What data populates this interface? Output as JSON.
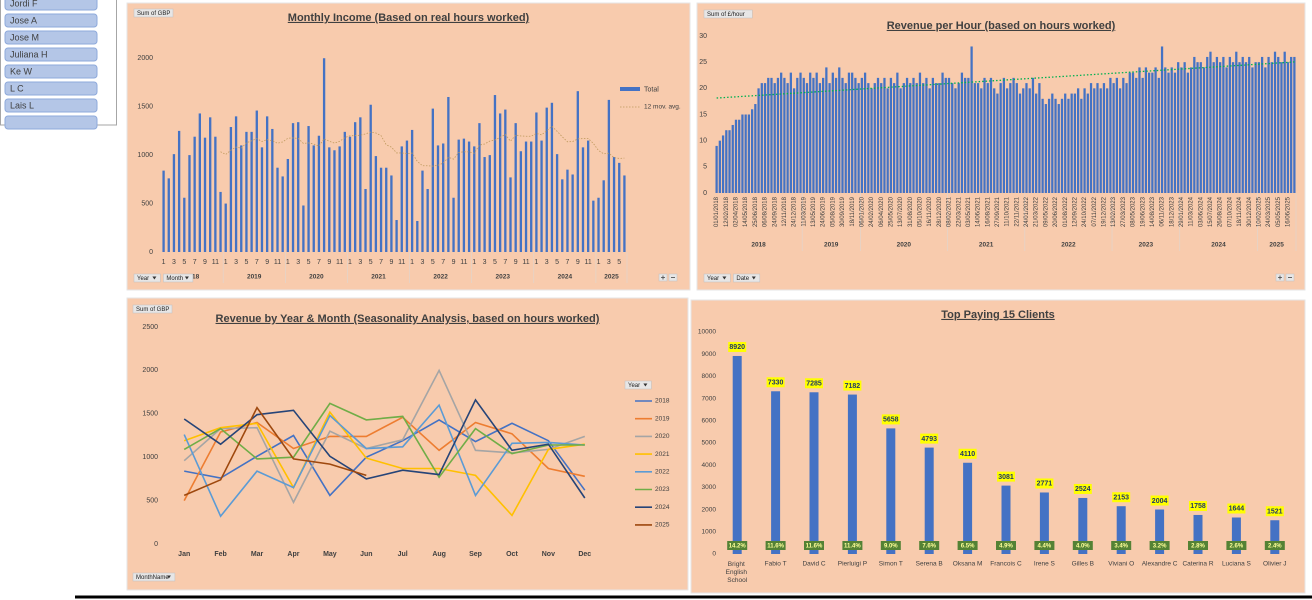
{
  "slicer": {
    "items": [
      "Jordi F",
      "Jose A",
      "Jose M",
      "Juliana H",
      "Ke W",
      "L C",
      "Lais L"
    ]
  },
  "chart_data": [
    {
      "type": "grouped_bar",
      "title": "Monthly Income (Based on real hours worked)",
      "field_button": "Sum of GBP",
      "axis_buttons": [
        "Year",
        "Month"
      ],
      "series_name": "Total",
      "color": "#4472c4",
      "trendline": {
        "name": "12 mov. avg.",
        "kind": "moving_average",
        "period": 12,
        "color": "#bf9a5e"
      },
      "ylim": [
        0,
        2250
      ],
      "yticks": [
        0,
        500,
        1000,
        1500,
        2000
      ],
      "groups": [
        {
          "name": "2018",
          "categories": [
            1,
            null,
            3,
            null,
            5,
            null,
            7,
            null,
            9,
            null,
            11,
            null
          ],
          "values": [
            840,
            760,
            1010,
            1250,
            560,
            1000,
            1190,
            1430,
            1180,
            1390,
            1190,
            620
          ]
        },
        {
          "name": "2019",
          "categories": [
            1,
            null,
            3,
            null,
            5,
            null,
            7,
            null,
            9,
            null,
            11,
            null
          ],
          "values": [
            500,
            1290,
            1400,
            1100,
            1240,
            1240,
            1460,
            1080,
            1400,
            1270,
            870,
            780
          ]
        },
        {
          "name": "2020",
          "categories": [
            1,
            null,
            3,
            null,
            5,
            null,
            7,
            null,
            9,
            null,
            11,
            null
          ],
          "values": [
            960,
            1330,
            1340,
            480,
            1300,
            1100,
            1200,
            2000,
            1080,
            1050,
            1090,
            1240
          ]
        },
        {
          "name": "2021",
          "categories": [
            1,
            null,
            3,
            null,
            5,
            null,
            7,
            null,
            9,
            null,
            11,
            null
          ],
          "values": [
            1190,
            1340,
            1390,
            650,
            1520,
            990,
            870,
            870,
            790,
            330,
            1090,
            1150
          ]
        },
        {
          "name": "2022",
          "categories": [
            1,
            null,
            3,
            null,
            5,
            null,
            7,
            null,
            9,
            null,
            11,
            null
          ],
          "values": [
            1260,
            320,
            840,
            650,
            1480,
            1100,
            1120,
            1600,
            560,
            1160,
            1170,
            1140
          ]
        },
        {
          "name": "2023",
          "categories": [
            1,
            null,
            3,
            null,
            5,
            null,
            7,
            null,
            9,
            null,
            11,
            null
          ],
          "values": [
            1090,
            1330,
            980,
            1000,
            1620,
            1430,
            1470,
            770,
            1330,
            1040,
            1140,
            1140
          ]
        },
        {
          "name": "2024",
          "categories": [
            1,
            null,
            3,
            null,
            5,
            null,
            7,
            null,
            9,
            null,
            11,
            null
          ],
          "values": [
            1440,
            1150,
            1490,
            1540,
            1010,
            750,
            850,
            800,
            1660,
            1080,
            1150,
            530
          ]
        },
        {
          "name": "2025",
          "categories": [
            1,
            null,
            3,
            null,
            5,
            null
          ],
          "values": [
            560,
            740,
            1570,
            980,
            920,
            790
          ]
        }
      ]
    },
    {
      "type": "grouped_bar",
      "title": "Revenue per Hour (based on hours worked)",
      "field_button": "Sum of £/hour",
      "axis_buttons": [
        "Year",
        "Date"
      ],
      "color": "#4472c4",
      "rotate_labels": true,
      "trendline": {
        "kind": "linear",
        "color": "#00b050"
      },
      "ylim": [
        0,
        30
      ],
      "yticks": [
        0,
        5,
        10,
        15,
        20,
        25,
        30
      ],
      "groups": [
        {
          "name": "2018",
          "categories": [
            "01/01/2018",
            null,
            null,
            "12/02/2018",
            null,
            null,
            "02/04/2018",
            null,
            null,
            "14/05/2018",
            null,
            null,
            "25/06/2018",
            null,
            null,
            "06/08/2018",
            null,
            null,
            "24/09/2018",
            null,
            null,
            "12/11/2018",
            null,
            null,
            "24/12/2018",
            null,
            null
          ],
          "values": [
            9,
            10,
            11,
            12,
            12,
            13,
            14,
            14,
            15,
            15,
            15,
            16,
            17,
            20,
            21,
            21,
            22,
            22,
            21,
            22,
            23,
            22,
            21,
            23,
            20,
            22,
            23
          ]
        },
        {
          "name": "2019",
          "categories": [
            "11/03/2019",
            null,
            null,
            "13/05/2019",
            null,
            null,
            "24/06/2019",
            null,
            null,
            "05/08/2019",
            null,
            null,
            "30/09/2019",
            null,
            null,
            "18/11/2019",
            null,
            null
          ],
          "values": [
            22,
            21,
            23,
            22,
            23,
            21,
            22,
            24,
            21,
            23,
            22,
            24,
            22,
            21,
            23,
            23,
            22,
            21
          ]
        },
        {
          "name": "2020",
          "categories": [
            "06/01/2020",
            null,
            null,
            "24/02/2020",
            null,
            null,
            "06/04/2020",
            null,
            null,
            "25/05/2020",
            null,
            null,
            "13/07/2020",
            null,
            null,
            "31/08/2020",
            null,
            null,
            "05/10/2020",
            null,
            null,
            "16/11/2020",
            null,
            null,
            "28/12/2020",
            null,
            null
          ],
          "values": [
            22,
            23,
            21,
            20,
            21,
            22,
            21,
            22,
            20,
            22,
            21,
            23,
            20,
            21,
            22,
            21,
            22,
            21,
            23,
            21,
            22,
            20,
            22,
            21,
            21,
            23,
            22
          ]
        },
        {
          "name": "2021",
          "categories": [
            "08/02/2021",
            null,
            null,
            "22/03/2021",
            null,
            null,
            "03/05/2021",
            null,
            null,
            "14/06/2021",
            null,
            null,
            "16/08/2021",
            null,
            null,
            "27/09/2021",
            null,
            null,
            "11/10/2021",
            null,
            null,
            "22/11/2021",
            null,
            null
          ],
          "values": [
            22,
            21,
            20,
            21,
            23,
            22,
            22,
            28,
            21,
            21,
            20,
            22,
            21,
            22,
            20,
            19,
            21,
            22,
            20,
            21,
            22,
            21,
            19,
            20
          ]
        },
        {
          "name": "2022",
          "categories": [
            "24/01/2022",
            null,
            null,
            "21/03/2022",
            null,
            null,
            "09/05/2022",
            null,
            null,
            "20/06/2022",
            null,
            null,
            "01/08/2022",
            null,
            null,
            "12/09/2022",
            null,
            null,
            "24/10/2022",
            null,
            null,
            "07/11/2022",
            null,
            null,
            "19/12/2022",
            null,
            null
          ],
          "values": [
            21,
            20,
            22,
            19,
            21,
            18,
            17,
            18,
            19,
            18,
            17,
            18,
            19,
            18,
            19,
            19,
            20,
            18,
            20,
            19,
            21,
            20,
            21,
            20,
            21,
            20,
            22
          ]
        },
        {
          "name": "2023",
          "categories": [
            "13/02/2023",
            null,
            null,
            "27/03/2023",
            null,
            null,
            "08/05/2023",
            null,
            null,
            "19/06/2023",
            null,
            null,
            "14/08/2023",
            null,
            null,
            "06/11/2023",
            null,
            null,
            "18/12/2023",
            null,
            null
          ],
          "values": [
            21,
            22,
            20,
            22,
            21,
            23,
            23,
            22,
            24,
            22,
            24,
            23,
            23,
            24,
            22,
            28,
            24,
            23,
            24,
            23,
            25
          ]
        },
        {
          "name": "2024",
          "categories": [
            "29/01/2024",
            null,
            null,
            "11/03/2024",
            null,
            null,
            "03/06/2024",
            null,
            null,
            "15/07/2024",
            null,
            null,
            "26/08/2024",
            null,
            null,
            "07/10/2024",
            null,
            null,
            "18/11/2024",
            null,
            null,
            "30/12/2024",
            null,
            null
          ],
          "values": [
            24,
            25,
            23,
            24,
            26,
            25,
            25,
            24,
            26,
            27,
            25,
            26,
            25,
            26,
            24,
            26,
            25,
            27,
            25,
            26,
            25,
            26,
            24,
            25
          ]
        },
        {
          "name": "2025",
          "categories": [
            "10/02/2025",
            null,
            null,
            "24/03/2025",
            null,
            null,
            "05/05/2025",
            null,
            null,
            "16/06/2025",
            null,
            null
          ],
          "values": [
            25,
            26,
            24,
            26,
            25,
            27,
            26,
            25,
            27,
            25,
            26,
            26
          ]
        }
      ]
    },
    {
      "type": "line",
      "title": "Revenue by Year & Month (Seasonality Analysis, based on hours worked)",
      "field_button": "Sum of GBP",
      "axis_buttons": [
        "MonthName"
      ],
      "legend_button": "Year",
      "categories": [
        "Jan",
        "Feb",
        "Mar",
        "Apr",
        "May",
        "Jun",
        "Jul",
        "Aug",
        "Sep",
        "Oct",
        "Nov",
        "Dec"
      ],
      "ylim": [
        0,
        2500
      ],
      "yticks": [
        0,
        500,
        1000,
        1500,
        2000,
        2500
      ],
      "series": [
        {
          "name": "2018",
          "color": "#4472c4",
          "values": [
            840,
            760,
            1010,
            1250,
            560,
            1000,
            1190,
            1430,
            1180,
            1390,
            1190,
            620
          ]
        },
        {
          "name": "2019",
          "color": "#ed7d31",
          "values": [
            500,
            1290,
            1400,
            1100,
            1240,
            1240,
            1460,
            1080,
            1400,
            1270,
            870,
            780
          ]
        },
        {
          "name": "2020",
          "color": "#a5a5a5",
          "values": [
            960,
            1330,
            1340,
            480,
            1300,
            1100,
            1200,
            2000,
            1080,
            1050,
            1090,
            1240
          ]
        },
        {
          "name": "2021",
          "color": "#ffc000",
          "values": [
            1190,
            1340,
            1390,
            650,
            1520,
            990,
            870,
            870,
            790,
            330,
            1090,
            1150
          ]
        },
        {
          "name": "2022",
          "color": "#5b9bd5",
          "values": [
            1260,
            320,
            840,
            650,
            1480,
            1100,
            1120,
            1600,
            560,
            1160,
            1170,
            1140
          ]
        },
        {
          "name": "2023",
          "color": "#70ad47",
          "values": [
            1090,
            1330,
            980,
            1000,
            1620,
            1430,
            1470,
            770,
            1330,
            1040,
            1140,
            1140
          ]
        },
        {
          "name": "2024",
          "color": "#264478",
          "values": [
            1440,
            1150,
            1490,
            1540,
            1010,
            750,
            850,
            800,
            1660,
            1080,
            1150,
            530
          ]
        },
        {
          "name": "2025",
          "color": "#9e480e",
          "values": [
            560,
            740,
            1570,
            980,
            920,
            790,
            null,
            null,
            null,
            null,
            null,
            null
          ]
        }
      ]
    },
    {
      "type": "bar",
      "title": "Top Paying 15 Clients",
      "color": "#4472c4",
      "categories": [
        "Bright English School",
        "Fabio T",
        "David C",
        "Pierluigi P",
        "Simon T",
        "Serena B",
        "Oksana M",
        "Francois C",
        "Irene S",
        "Gilles B",
        "Viviani O",
        "Alexandre C",
        "Caterina R",
        "Luciana S",
        "Olivier J"
      ],
      "values": [
        8920,
        7330,
        7285,
        7182,
        5658,
        4793,
        4110,
        3081,
        2771,
        2524,
        2153,
        2004,
        1758,
        1644,
        1521
      ],
      "share": {
        "values": [
          14.2,
          11.6,
          11.6,
          11.4,
          9.0,
          7.6,
          6.5,
          4.9,
          4.4,
          4.0,
          3.4,
          3.2,
          2.8,
          2.6,
          2.4
        ],
        "value_labels": [
          "14.2%",
          "11.6%",
          "11.6%",
          "11.4%",
          "9.0%",
          "7.6%",
          "6.5%",
          "4.9%",
          "4.4%",
          "4.0%",
          "3.4%",
          "3.2%",
          "2.8%",
          "2.6%",
          "2.4%"
        ]
      },
      "ylim": [
        0,
        10000
      ],
      "yticks": [
        0,
        1000,
        2000,
        3000,
        4000,
        5000,
        6000,
        7000,
        8000,
        9000,
        10000
      ]
    }
  ]
}
